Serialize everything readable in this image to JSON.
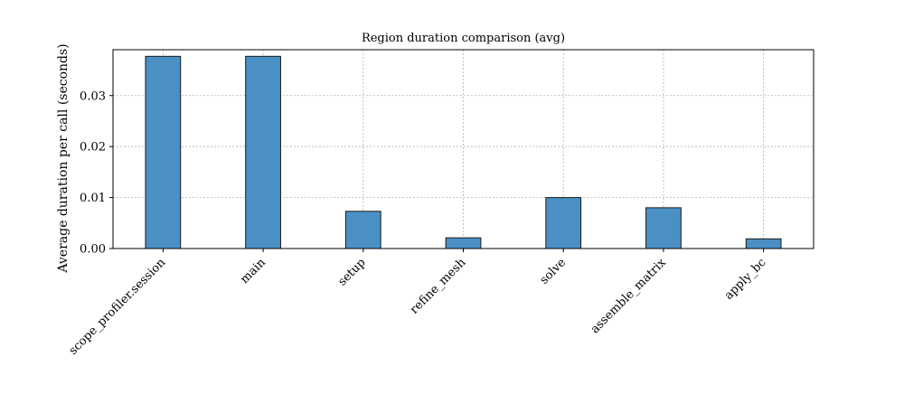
{
  "chart_data": {
    "type": "bar",
    "title": "Region duration comparison (avg)",
    "xlabel": "",
    "ylabel": "Average duration per call (seconds)",
    "categories": [
      "scope_profiler.session",
      "main",
      "setup",
      "refine_mesh",
      "solve",
      "assemble_matrix",
      "apply_bc"
    ],
    "values": [
      0.0377,
      0.0377,
      0.0073,
      0.0021,
      0.01,
      0.008,
      0.0019
    ],
    "ylim": [
      0,
      0.039
    ],
    "yticks": [
      0.0,
      0.01,
      0.02,
      0.03
    ],
    "ytick_labels": [
      "0.00",
      "0.01",
      "0.02",
      "0.03"
    ],
    "grid": true,
    "legend": "none",
    "colors": {
      "bar": "#4a90c4",
      "bar_edge": "#1a1a1a",
      "grid": "#b0b0b0"
    }
  }
}
